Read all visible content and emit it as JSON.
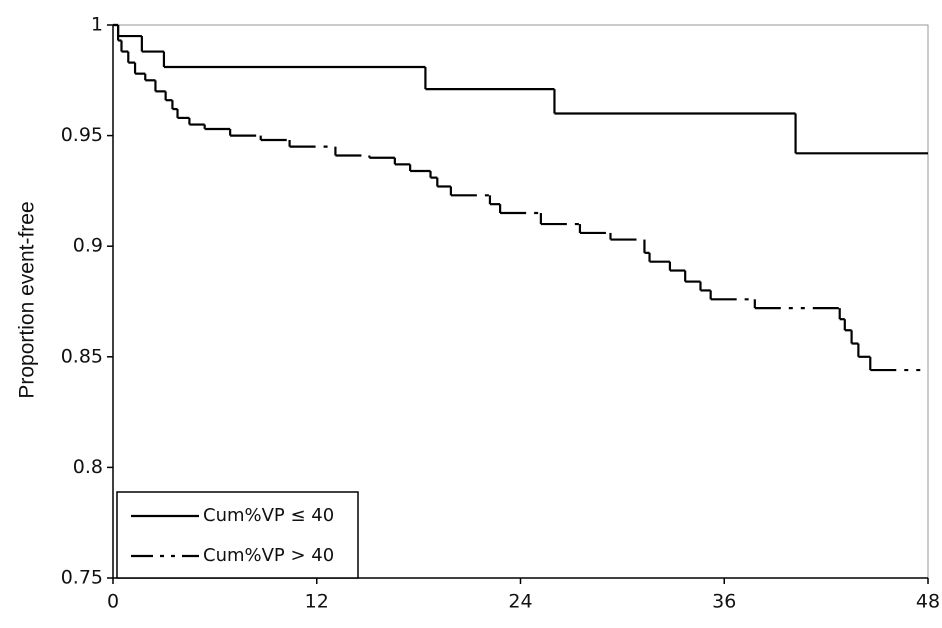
{
  "chart_data": {
    "type": "step",
    "y_label": "Proportion event-free",
    "xlim": [
      0,
      48
    ],
    "xticks": [
      0,
      12,
      24,
      36,
      48
    ],
    "ylim": [
      0.75,
      1
    ],
    "yticks": [
      0.75,
      0.8,
      0.85,
      0.9,
      0.95,
      1
    ],
    "legend": "lower left",
    "series": [
      {
        "name": "Cum%VP ≤ 40",
        "color": "#000000",
        "linestyle": "solid",
        "x": [
          0,
          0.3,
          1.7,
          3.0,
          18.4,
          26.0,
          40.2,
          48
        ],
        "values": [
          1,
          0.995,
          0.988,
          0.981,
          0.971,
          0.96,
          0.942,
          0.942
        ]
      },
      {
        "name": "Cum%VP > 40",
        "color": "#000000",
        "linestyle": "dashdotdot",
        "x": [
          0,
          0.3,
          0.5,
          0.9,
          1.3,
          1.9,
          2.5,
          3.1,
          3.5,
          3.8,
          4.5,
          5.4,
          6.9,
          8.7,
          10.4,
          13.1,
          15.1,
          16.6,
          17.5,
          18.7,
          19.1,
          19.9,
          22.2,
          22.8,
          25.2,
          27.5,
          29.3,
          31.3,
          31.6,
          32.8,
          33.7,
          34.6,
          35.2,
          37.8,
          42.8,
          43.1,
          43.5,
          43.9,
          44.6,
          48
        ],
        "values": [
          1,
          0.993,
          0.988,
          0.983,
          0.978,
          0.975,
          0.97,
          0.966,
          0.962,
          0.958,
          0.955,
          0.953,
          0.95,
          0.948,
          0.945,
          0.941,
          0.94,
          0.937,
          0.934,
          0.931,
          0.927,
          0.923,
          0.919,
          0.915,
          0.91,
          0.906,
          0.903,
          0.897,
          0.893,
          0.889,
          0.884,
          0.88,
          0.876,
          0.872,
          0.867,
          0.862,
          0.856,
          0.85,
          0.844,
          0.844
        ]
      }
    ]
  }
}
